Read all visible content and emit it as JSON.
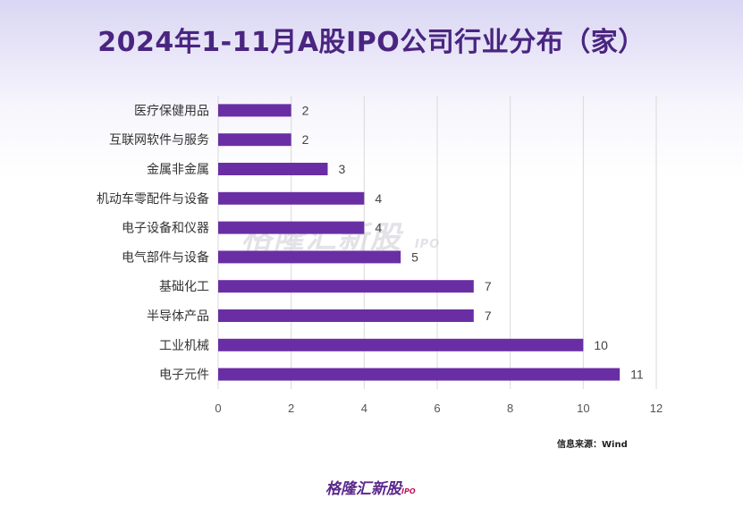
{
  "title": "2024年1-11月A股IPO公司行业分布（家）",
  "source": "信息来源：Wind",
  "watermark": {
    "text": "格隆汇新股",
    "sub": "IPO"
  },
  "logo": {
    "text": "格隆汇新股",
    "sub": "IPO"
  },
  "colors": {
    "bar": "#6a2ea4",
    "title": "#4a2580",
    "grid": "#d9d9d9"
  },
  "chart_data": {
    "type": "bar",
    "orientation": "horizontal",
    "categories": [
      "医疗保健用品",
      "互联网软件与服务",
      "金属非金属",
      "机动车零配件与设备",
      "电子设备和仪器",
      "电气部件与设备",
      "基础化工",
      "半导体产品",
      "工业机械",
      "电子元件"
    ],
    "values": [
      2,
      2,
      3,
      4,
      4,
      5,
      7,
      7,
      10,
      11
    ],
    "title": "2024年1-11月A股IPO公司行业分布（家）",
    "xlabel": "",
    "ylabel": "",
    "xlim": [
      0,
      12
    ],
    "xticks": [
      0,
      2,
      4,
      6,
      8,
      10,
      12
    ],
    "grid": true,
    "data_labels": true
  }
}
